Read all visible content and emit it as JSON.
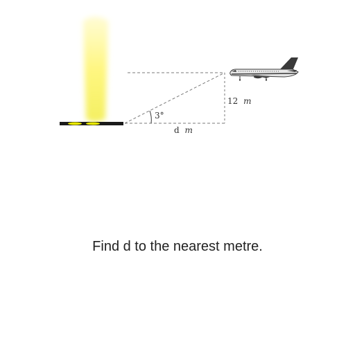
{
  "diagram": {
    "angle_label": "3°",
    "height_value": "12",
    "height_unit": "m",
    "distance_value": "d",
    "distance_unit": "m"
  },
  "question": "Find d to the nearest metre.",
  "colors": {
    "light_beam": "#fffb9e",
    "runway": "#1a1a1a",
    "runway_lights": "#e8e800",
    "dashed_lines": "#7a7a7a",
    "plane_body": "#e6e6e6",
    "plane_dark": "#3a3a3a"
  }
}
